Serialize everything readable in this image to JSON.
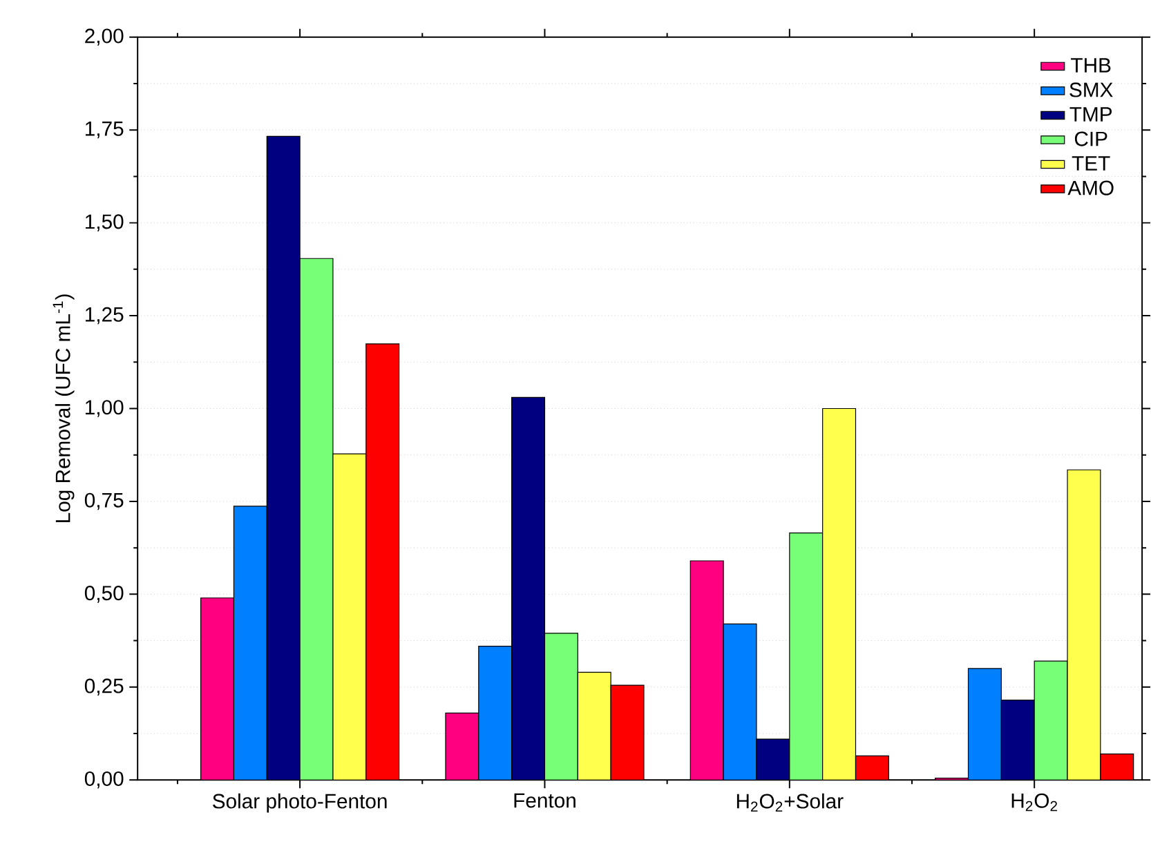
{
  "chart_data": {
    "type": "bar",
    "ylabel": "Log Removal (UFC mL$^{-1}$)",
    "categories": [
      "Solar photo-Fenton",
      "Fenton",
      "H$_{2}$O$_{2}$+Solar",
      "H$_{2}$O$_{2}$"
    ],
    "series": [
      {
        "name": "THB",
        "color": "#ff0080",
        "values": [
          0.49,
          0.18,
          0.59,
          0.005
        ]
      },
      {
        "name": "SMX",
        "color": "#0080ff",
        "values": [
          0.737,
          0.36,
          0.42,
          0.3
        ]
      },
      {
        "name": "TMP",
        "color": "#000080",
        "values": [
          1.733,
          1.03,
          0.11,
          0.215
        ]
      },
      {
        "name": "CIP",
        "color": "#77ff77",
        "values": [
          1.404,
          0.395,
          0.665,
          0.32
        ]
      },
      {
        "name": "TET",
        "color": "#ffff4d",
        "values": [
          0.878,
          0.29,
          1.0,
          0.835
        ]
      },
      {
        "name": "AMO",
        "color": "#ff0000",
        "values": [
          1.174,
          0.255,
          0.065,
          0.07
        ]
      }
    ],
    "ylim": [
      0,
      2
    ],
    "yticks": [
      {
        "value": 0,
        "label": "0,00"
      },
      {
        "value": 0.25,
        "label": "0,25"
      },
      {
        "value": 0.5,
        "label": "0,50"
      },
      {
        "value": 0.75,
        "label": "0,75"
      },
      {
        "value": 1,
        "label": "1,00"
      },
      {
        "value": 1.25,
        "label": "1,25"
      },
      {
        "value": 1.5,
        "label": "1,50"
      },
      {
        "value": 1.75,
        "label": "1,75"
      },
      {
        "value": 2,
        "label": "2,00"
      }
    ],
    "grid": "y",
    "legend": "top right"
  }
}
